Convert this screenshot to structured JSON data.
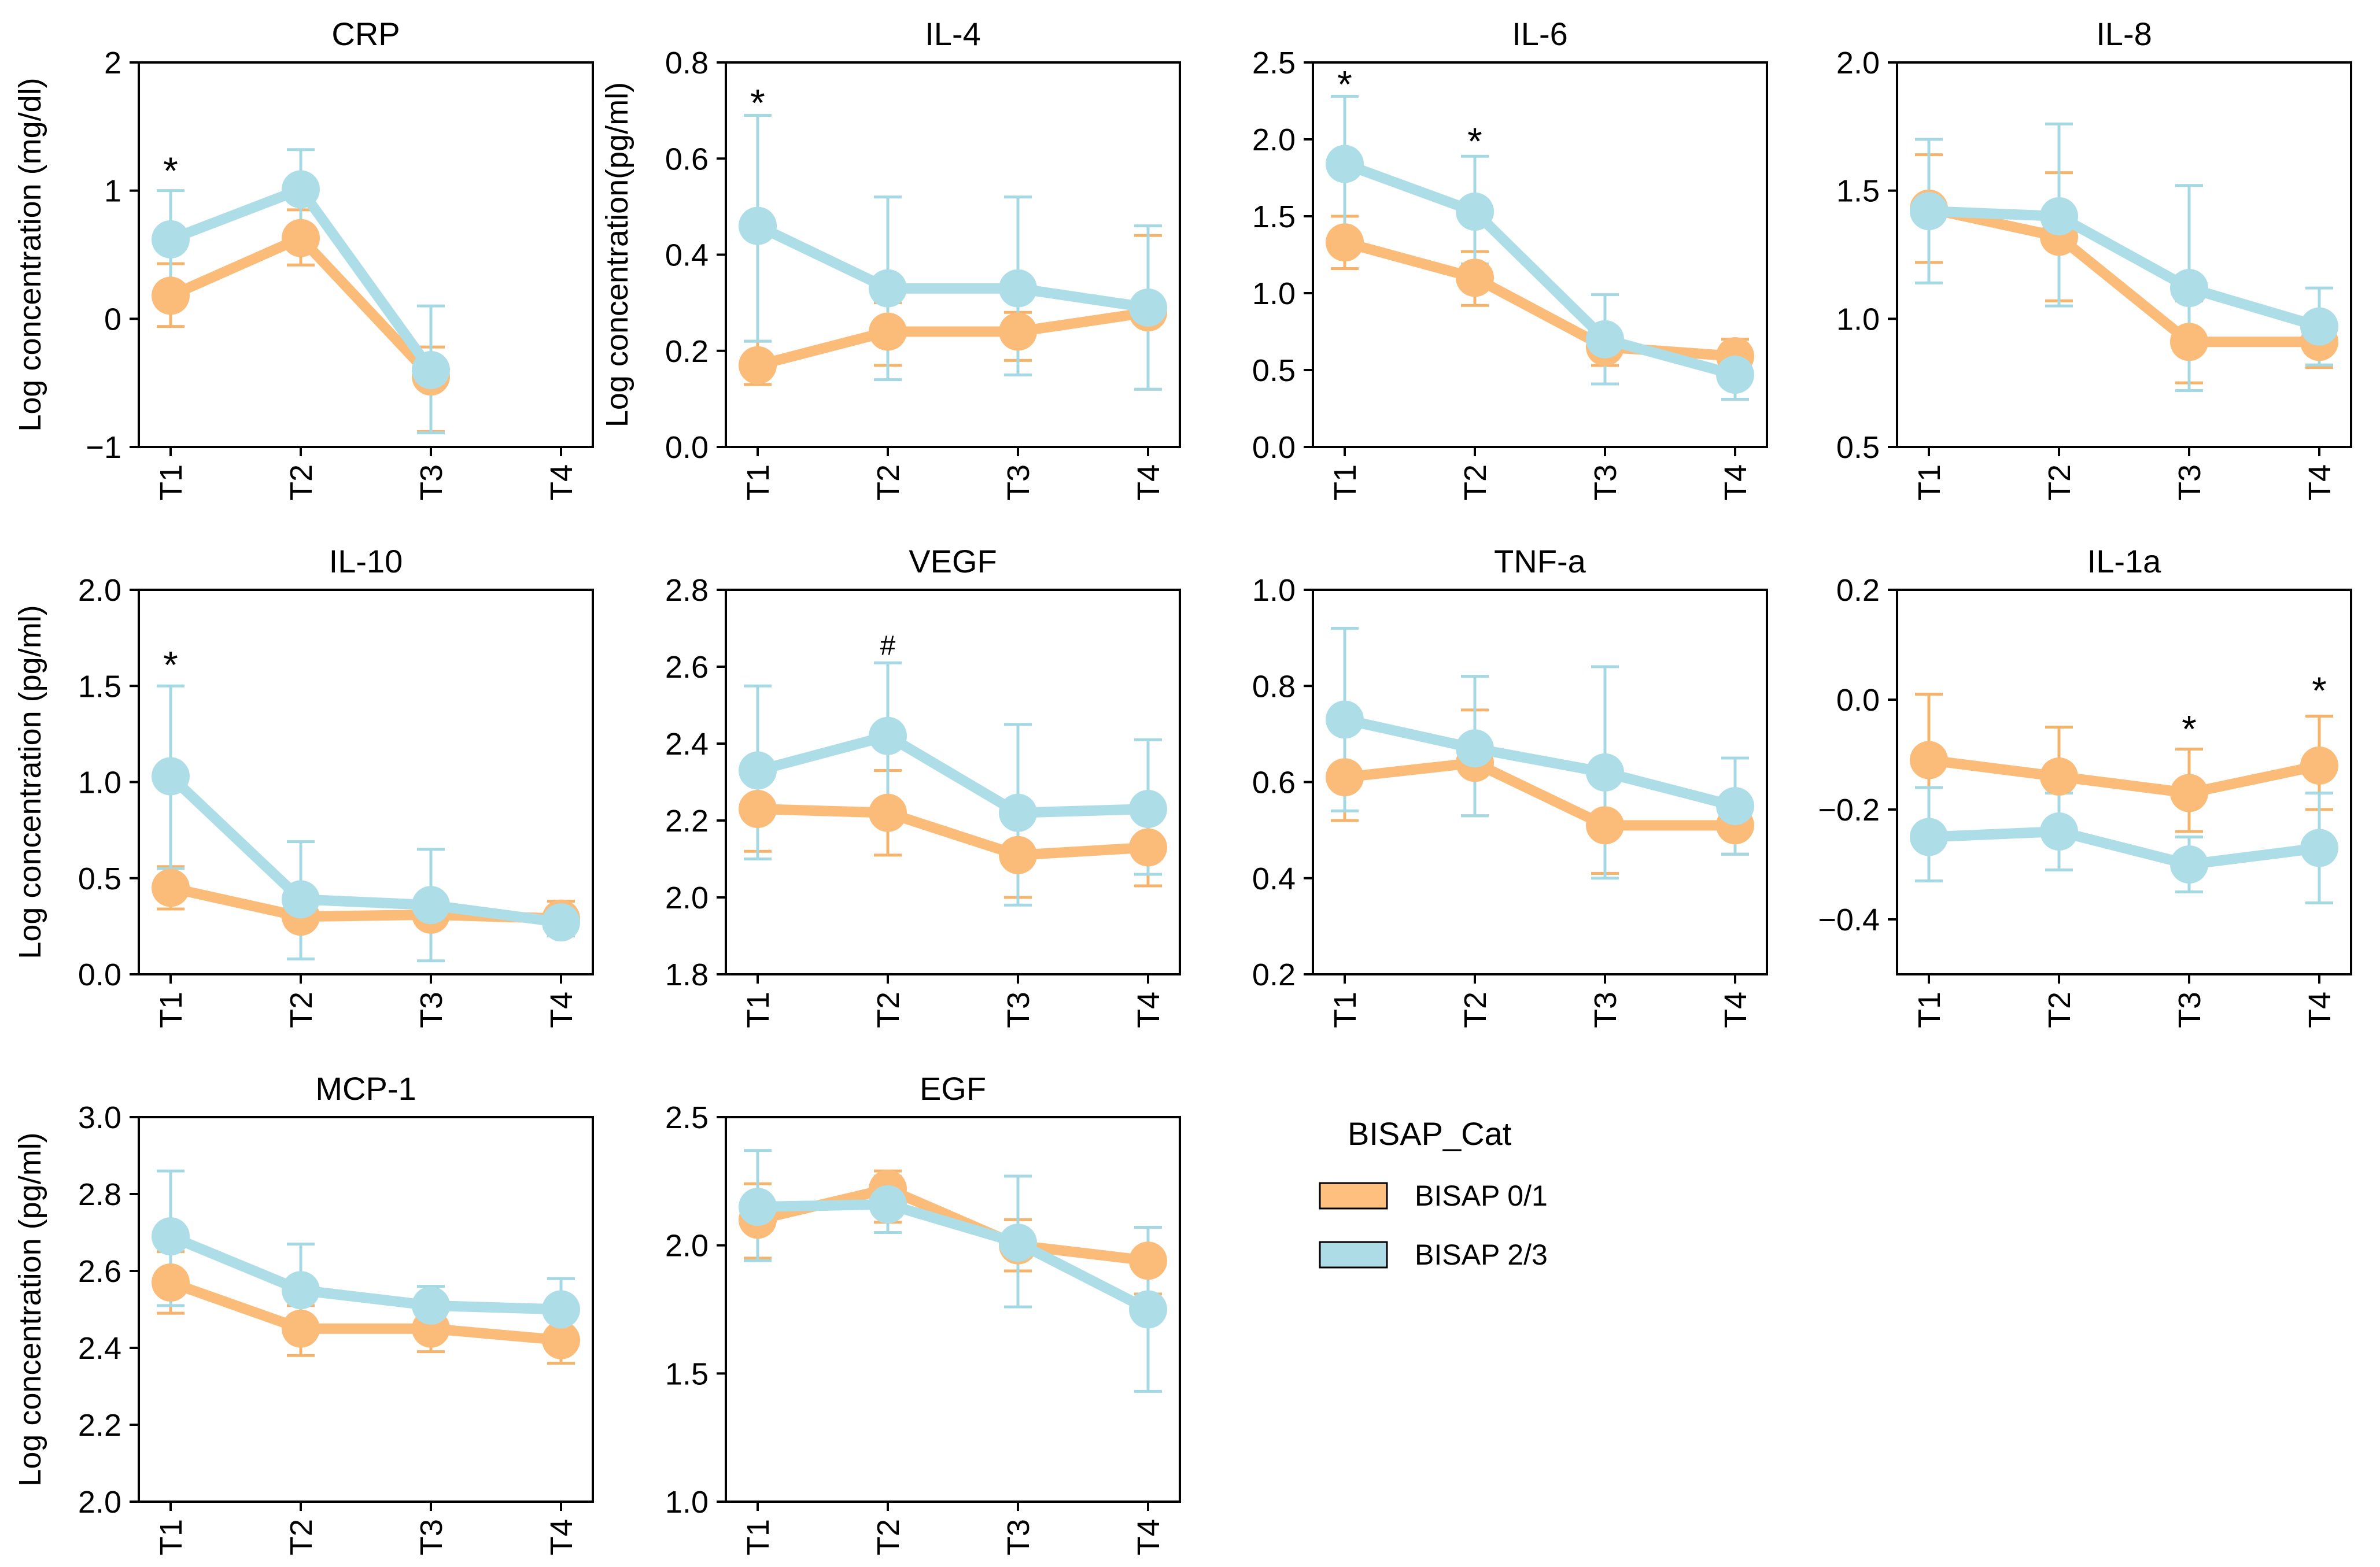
{
  "legend": {
    "title": "BISAP_Cat",
    "entries": [
      {
        "label": "BISAP 0/1",
        "color": "#FFBF7F"
      },
      {
        "label": "BISAP 2/3",
        "color": "#ADDCE6"
      }
    ]
  },
  "colors": {
    "group1": "#FABC78",
    "group1_err": "#F6B36B",
    "group1_edge": "#000000",
    "group2": "#ADDDE6",
    "group2_err": "#A4D9E3"
  },
  "chart_data": [
    {
      "type": "line",
      "title": "CRP",
      "ylabel": "Log concentration (mg/dl)",
      "categories": [
        "T1",
        "T2",
        "T3",
        "T4"
      ],
      "ylim": [
        -1,
        2
      ],
      "yticks": [
        -1,
        0,
        1,
        2
      ],
      "ytick_labels": [
        "−1",
        "0",
        "1",
        "2"
      ],
      "series": [
        {
          "name": "BISAP 0/1",
          "values": [
            0.18,
            0.63,
            -0.45,
            null
          ],
          "err_low": [
            -0.06,
            0.42,
            -0.88,
            null
          ],
          "err_high": [
            0.43,
            0.85,
            -0.22,
            null
          ]
        },
        {
          "name": "BISAP 2/3",
          "values": [
            0.62,
            1.01,
            -0.4,
            null
          ],
          "err_low": [
            0.21,
            0.72,
            -0.89,
            null
          ],
          "err_high": [
            1.0,
            1.32,
            0.1,
            null
          ]
        }
      ],
      "annotations": [
        {
          "x": "T1",
          "y": 1.17,
          "text": "*"
        }
      ]
    },
    {
      "type": "line",
      "title": "IL-4",
      "ylabel": "Log concentration(pg/ml)",
      "categories": [
        "T1",
        "T2",
        "T3",
        "T4"
      ],
      "ylim": [
        0.0,
        0.8
      ],
      "yticks": [
        0.0,
        0.2,
        0.4,
        0.6,
        0.8
      ],
      "ytick_labels": [
        "0.0",
        "0.2",
        "0.4",
        "0.6",
        "0.8"
      ],
      "series": [
        {
          "name": "BISAP 0/1",
          "values": [
            0.17,
            0.24,
            0.24,
            0.28
          ],
          "err_low": [
            0.13,
            0.17,
            0.18,
            0.12
          ],
          "err_high": [
            0.22,
            0.3,
            0.28,
            0.44
          ]
        },
        {
          "name": "BISAP 2/3",
          "values": [
            0.46,
            0.33,
            0.33,
            0.29
          ],
          "err_low": [
            0.22,
            0.14,
            0.15,
            0.12
          ],
          "err_high": [
            0.69,
            0.52,
            0.52,
            0.46
          ]
        }
      ],
      "annotations": [
        {
          "x": "T1",
          "y": 0.72,
          "text": "*"
        }
      ]
    },
    {
      "type": "line",
      "title": "IL-6",
      "ylabel": "",
      "categories": [
        "T1",
        "T2",
        "T3",
        "T4"
      ],
      "ylim": [
        0.0,
        2.5
      ],
      "yticks": [
        0.0,
        0.5,
        1.0,
        1.5,
        2.0,
        2.5
      ],
      "ytick_labels": [
        "0.0",
        "0.5",
        "1.0",
        "1.5",
        "2.0",
        "2.5"
      ],
      "series": [
        {
          "name": "BISAP 0/1",
          "values": [
            1.33,
            1.1,
            0.65,
            0.59
          ],
          "err_low": [
            1.16,
            0.92,
            0.53,
            0.48
          ],
          "err_high": [
            1.5,
            1.27,
            0.77,
            0.7
          ]
        },
        {
          "name": "BISAP 2/3",
          "values": [
            1.84,
            1.53,
            0.7,
            0.47
          ],
          "err_low": [
            1.37,
            1.19,
            0.41,
            0.31
          ],
          "err_high": [
            2.28,
            1.89,
            0.99,
            0.63
          ]
        }
      ],
      "annotations": [
        {
          "x": "T1",
          "y": 2.37,
          "text": "*"
        },
        {
          "x": "T2",
          "y": 2.0,
          "text": "*"
        }
      ]
    },
    {
      "type": "line",
      "title": "IL-8",
      "ylabel": "",
      "categories": [
        "T1",
        "T2",
        "T3",
        "T4"
      ],
      "ylim": [
        0.5,
        2.0
      ],
      "yticks": [
        0.5,
        1.0,
        1.5,
        2.0
      ],
      "ytick_labels": [
        "0.5",
        "1.0",
        "1.5",
        "2.0"
      ],
      "series": [
        {
          "name": "BISAP 0/1",
          "values": [
            1.43,
            1.32,
            0.91,
            0.91
          ],
          "err_low": [
            1.22,
            1.07,
            0.75,
            0.81
          ],
          "err_high": [
            1.64,
            1.57,
            1.07,
            1.01
          ]
        },
        {
          "name": "BISAP 2/3",
          "values": [
            1.42,
            1.4,
            1.12,
            0.97
          ],
          "err_low": [
            1.14,
            1.05,
            0.72,
            0.82
          ],
          "err_high": [
            1.7,
            1.76,
            1.52,
            1.12
          ]
        }
      ],
      "annotations": []
    },
    {
      "type": "line",
      "title": "IL-10",
      "ylabel": "Log concentration (pg/ml)",
      "categories": [
        "T1",
        "T2",
        "T3",
        "T4"
      ],
      "ylim": [
        0.0,
        2.0
      ],
      "yticks": [
        0.0,
        0.5,
        1.0,
        1.5,
        2.0
      ],
      "ytick_labels": [
        "0.0",
        "0.5",
        "1.0",
        "1.5",
        "2.0"
      ],
      "series": [
        {
          "name": "BISAP 0/1",
          "values": [
            0.45,
            0.3,
            0.31,
            0.29
          ],
          "err_low": [
            0.34,
            0.24,
            0.26,
            0.21
          ],
          "err_high": [
            0.56,
            0.36,
            0.36,
            0.38
          ]
        },
        {
          "name": "BISAP 2/3",
          "values": [
            1.03,
            0.39,
            0.36,
            0.27
          ],
          "err_low": [
            0.55,
            0.08,
            0.07,
            0.2
          ],
          "err_high": [
            1.5,
            0.69,
            0.65,
            0.34
          ]
        }
      ],
      "annotations": [
        {
          "x": "T1",
          "y": 1.62,
          "text": "*"
        }
      ]
    },
    {
      "type": "line",
      "title": "VEGF",
      "ylabel": "",
      "categories": [
        "T1",
        "T2",
        "T3",
        "T4"
      ],
      "ylim": [
        1.8,
        2.8
      ],
      "yticks": [
        1.8,
        2.0,
        2.2,
        2.4,
        2.6,
        2.8
      ],
      "ytick_labels": [
        "1.8",
        "2.0",
        "2.2",
        "2.4",
        "2.6",
        "2.8"
      ],
      "series": [
        {
          "name": "BISAP 0/1",
          "values": [
            2.23,
            2.22,
            2.11,
            2.13
          ],
          "err_low": [
            2.12,
            2.11,
            2.0,
            2.03
          ],
          "err_high": [
            2.33,
            2.33,
            2.21,
            2.23
          ]
        },
        {
          "name": "BISAP 2/3",
          "values": [
            2.33,
            2.42,
            2.22,
            2.23
          ],
          "err_low": [
            2.1,
            2.23,
            1.98,
            2.06
          ],
          "err_high": [
            2.55,
            2.61,
            2.45,
            2.41
          ]
        }
      ],
      "annotations": [
        {
          "x": "T2",
          "y": 2.67,
          "text": "#"
        }
      ]
    },
    {
      "type": "line",
      "title": "TNF-a",
      "ylabel": "",
      "categories": [
        "T1",
        "T2",
        "T3",
        "T4"
      ],
      "ylim": [
        0.2,
        1.0
      ],
      "yticks": [
        0.2,
        0.4,
        0.6,
        0.8,
        1.0
      ],
      "ytick_labels": [
        "0.2",
        "0.4",
        "0.6",
        "0.8",
        "1.0"
      ],
      "series": [
        {
          "name": "BISAP 0/1",
          "values": [
            0.61,
            0.64,
            0.51,
            0.51
          ],
          "err_low": [
            0.52,
            0.53,
            0.41,
            0.45
          ],
          "err_high": [
            0.71,
            0.75,
            0.62,
            0.57
          ]
        },
        {
          "name": "BISAP 2/3",
          "values": [
            0.73,
            0.67,
            0.62,
            0.55
          ],
          "err_low": [
            0.54,
            0.53,
            0.4,
            0.45
          ],
          "err_high": [
            0.92,
            0.82,
            0.84,
            0.65
          ]
        }
      ],
      "annotations": []
    },
    {
      "type": "line",
      "title": "IL-1a",
      "ylabel": "",
      "categories": [
        "T1",
        "T2",
        "T3",
        "T4"
      ],
      "ylim": [
        -0.5,
        0.2
      ],
      "yticks": [
        -0.4,
        -0.2,
        0.0,
        0.2
      ],
      "ytick_labels": [
        "−0.4",
        "−0.2",
        "0.0",
        "0.2"
      ],
      "series": [
        {
          "name": "BISAP 0/1",
          "values": [
            -0.11,
            -0.14,
            -0.17,
            -0.12
          ],
          "err_low": [
            -0.23,
            -0.23,
            -0.24,
            -0.2
          ],
          "err_high": [
            0.01,
            -0.05,
            -0.09,
            -0.03
          ]
        },
        {
          "name": "BISAP 2/3",
          "values": [
            -0.25,
            -0.24,
            -0.3,
            -0.27
          ],
          "err_low": [
            -0.33,
            -0.31,
            -0.35,
            -0.37
          ],
          "err_high": [
            -0.16,
            -0.17,
            -0.25,
            -0.17
          ]
        }
      ],
      "annotations": [
        {
          "x": "T3",
          "y": -0.05,
          "text": "*"
        },
        {
          "x": "T4",
          "y": 0.02,
          "text": "*"
        }
      ]
    },
    {
      "type": "line",
      "title": "MCP-1",
      "ylabel": "Log concentration (pg/ml)",
      "categories": [
        "T1",
        "T2",
        "T3",
        "T4"
      ],
      "ylim": [
        2.0,
        3.0
      ],
      "yticks": [
        2.0,
        2.2,
        2.4,
        2.6,
        2.8,
        3.0
      ],
      "ytick_labels": [
        "2.0",
        "2.2",
        "2.4",
        "2.6",
        "2.8",
        "3.0"
      ],
      "series": [
        {
          "name": "BISAP 0/1",
          "values": [
            2.57,
            2.45,
            2.45,
            2.42
          ],
          "err_low": [
            2.49,
            2.38,
            2.39,
            2.36
          ],
          "err_high": [
            2.65,
            2.51,
            2.51,
            2.48
          ]
        },
        {
          "name": "BISAP 2/3",
          "values": [
            2.69,
            2.55,
            2.51,
            2.5
          ],
          "err_low": [
            2.51,
            2.43,
            2.45,
            2.42
          ],
          "err_high": [
            2.86,
            2.67,
            2.56,
            2.58
          ]
        }
      ],
      "annotations": []
    },
    {
      "type": "line",
      "title": "EGF",
      "ylabel": "",
      "categories": [
        "T1",
        "T2",
        "T3",
        "T4"
      ],
      "ylim": [
        1.0,
        2.5
      ],
      "yticks": [
        1.0,
        1.5,
        2.0,
        2.5
      ],
      "ytick_labels": [
        "1.0",
        "1.5",
        "2.0",
        "2.5"
      ],
      "series": [
        {
          "name": "BISAP 0/1",
          "values": [
            2.1,
            2.22,
            2.0,
            1.94
          ],
          "err_low": [
            1.95,
            2.09,
            1.9,
            1.81
          ],
          "err_high": [
            2.24,
            2.29,
            2.1,
            2.07
          ]
        },
        {
          "name": "BISAP 2/3",
          "values": [
            2.15,
            2.16,
            2.01,
            1.75
          ],
          "err_low": [
            1.94,
            2.05,
            1.76,
            1.43
          ],
          "err_high": [
            2.37,
            2.27,
            2.27,
            2.07
          ]
        }
      ],
      "annotations": []
    }
  ]
}
